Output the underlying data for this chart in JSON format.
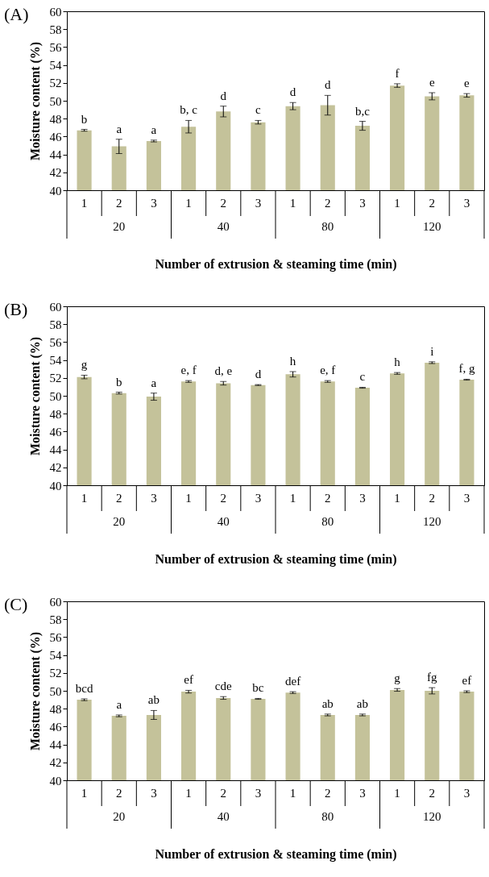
{
  "chart_data": [
    {
      "type": "bar",
      "title": "(A)",
      "xlabel": "Number of extrusion & steaming time (min)",
      "ylabel": "Moisture content (%)",
      "categories": [
        "1",
        "2",
        "3",
        "1",
        "2",
        "3",
        "1",
        "2",
        "3",
        "1",
        "2",
        "3"
      ],
      "values": [
        46.7,
        44.9,
        45.5,
        47.1,
        48.8,
        47.6,
        49.4,
        49.5,
        47.2,
        51.7,
        50.5,
        50.6
      ],
      "errors": [
        0.1,
        0.8,
        0.1,
        0.7,
        0.6,
        0.2,
        0.4,
        1.1,
        0.5,
        0.2,
        0.4,
        0.2
      ],
      "value_labels": [
        "b",
        "a",
        "a",
        "b, c",
        "d",
        "c",
        "d",
        "d",
        "b,c",
        "f",
        "e",
        "e"
      ],
      "annotations": [
        "20",
        "40",
        "80",
        "120"
      ],
      "color": "#c4c29a",
      "ylim": [
        40,
        60
      ],
      "yticks": [
        40,
        42,
        44,
        46,
        48,
        50,
        52,
        54,
        56,
        58,
        60
      ]
    },
    {
      "type": "bar",
      "title": "(B)",
      "xlabel": "Number of extrusion & steaming time (min)",
      "ylabel": "Moisture content (%)",
      "categories": [
        "1",
        "2",
        "3",
        "1",
        "2",
        "3",
        "1",
        "2",
        "3",
        "1",
        "2",
        "3"
      ],
      "values": [
        52.1,
        50.3,
        49.9,
        51.6,
        51.4,
        51.2,
        52.4,
        51.6,
        50.9,
        52.5,
        53.7,
        51.8
      ],
      "errors": [
        0.2,
        0.1,
        0.4,
        0.1,
        0.2,
        0.05,
        0.3,
        0.1,
        0.05,
        0.1,
        0.1,
        0.05
      ],
      "value_labels": [
        "g",
        "b",
        "a",
        "e, f",
        "d, e",
        "d",
        "h",
        "e, f",
        "c",
        "h",
        "i",
        "f, g"
      ],
      "annotations": [
        "20",
        "40",
        "80",
        "120"
      ],
      "color": "#c4c29a",
      "ylim": [
        40,
        60
      ],
      "yticks": [
        40,
        42,
        44,
        46,
        48,
        50,
        52,
        54,
        56,
        58,
        60
      ]
    },
    {
      "type": "bar",
      "title": "(C)",
      "xlabel": "Number of extrusion & steaming time (min)",
      "ylabel": "Moisture content (%)",
      "categories": [
        "1",
        "2",
        "3",
        "1",
        "2",
        "3",
        "1",
        "2",
        "3",
        "1",
        "2",
        "3"
      ],
      "values": [
        49.0,
        47.2,
        47.3,
        49.9,
        49.2,
        49.1,
        49.8,
        47.3,
        47.3,
        50.1,
        50.0,
        49.9
      ],
      "errors": [
        0.1,
        0.1,
        0.5,
        0.15,
        0.15,
        0.05,
        0.1,
        0.1,
        0.1,
        0.15,
        0.35,
        0.1
      ],
      "value_labels": [
        "bcd",
        "a",
        "ab",
        "ef",
        "cde",
        "bc",
        "def",
        "ab",
        "ab",
        "g",
        "fg",
        "ef"
      ],
      "annotations": [
        "20",
        "40",
        "80",
        "120"
      ],
      "color": "#c4c29a",
      "ylim": [
        40,
        60
      ],
      "yticks": [
        40,
        42,
        44,
        46,
        48,
        50,
        52,
        54,
        56,
        58,
        60
      ]
    }
  ]
}
